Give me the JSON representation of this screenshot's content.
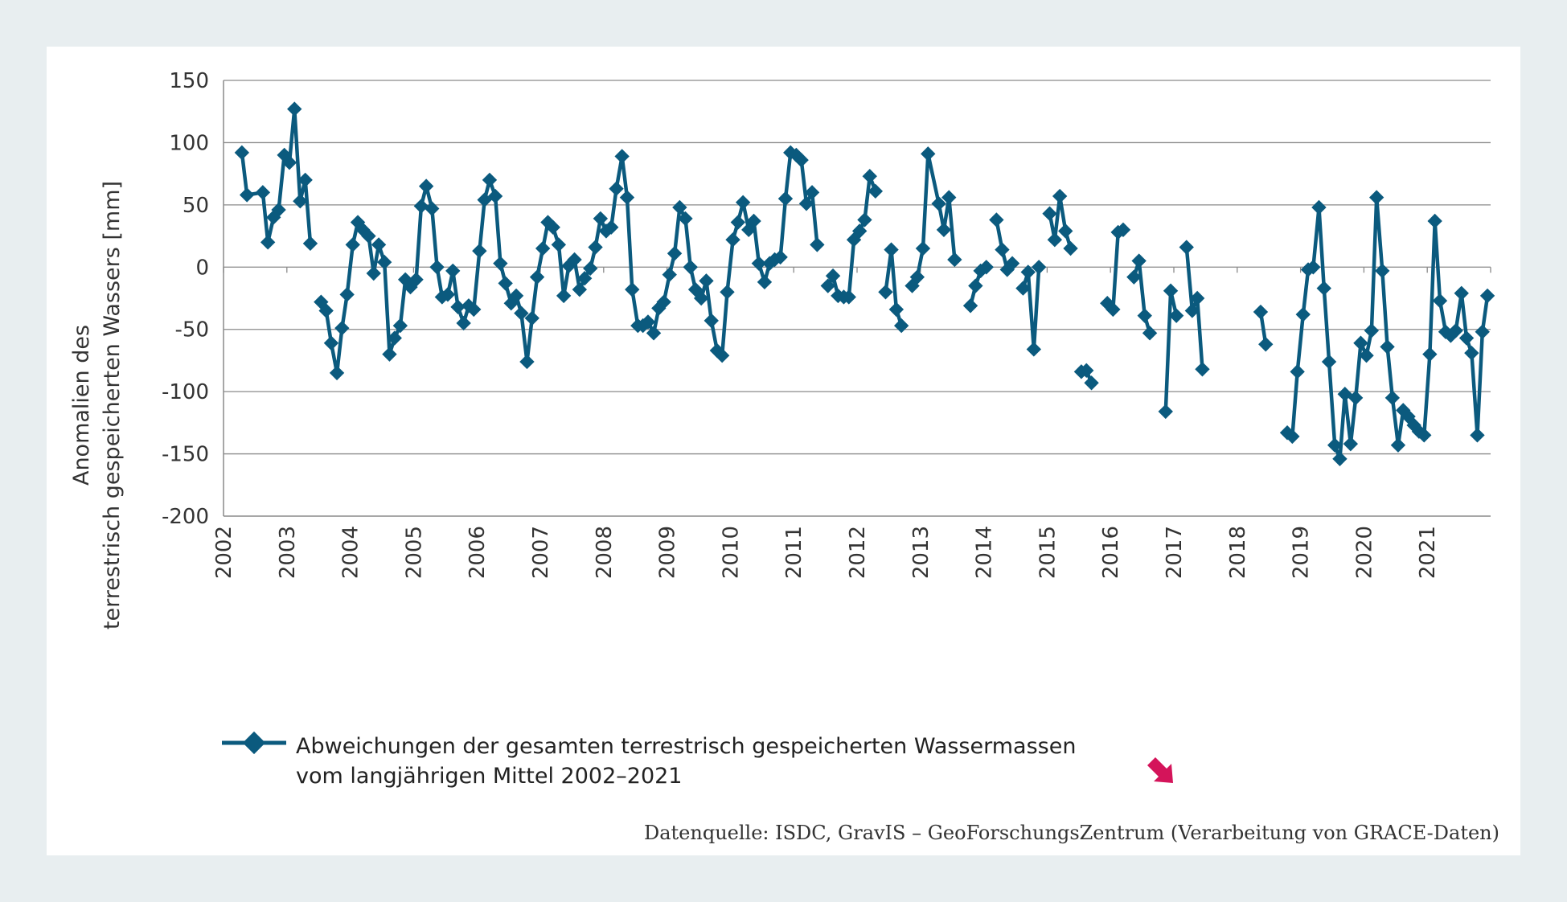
{
  "colors": {
    "line": "#0b5a7e",
    "grid": "#8a8a8a",
    "accent": "#d4145a",
    "background": "#e8eef0"
  },
  "legend": {
    "line1": "Abweichungen der gesamten terrestrisch gespeicherten Wassermassen",
    "line2": "vom langjährigen Mittel 2002–2021"
  },
  "source": "Datenquelle: ISDC, GravIS – GeoForschungsZentrum (Verarbeitung von GRACE-Daten)",
  "arrow_icon": "pink-arrow-down-right-icon",
  "chart_data": {
    "type": "line",
    "ylabel_line1": "Anomalien des",
    "ylabel_line2": "terrestrisch gespeicherten Wassers  [mm]",
    "ylim": [
      -200,
      150
    ],
    "yticks": [
      150,
      100,
      50,
      0,
      -50,
      -100,
      -150,
      -200
    ],
    "ytick_labels": [
      "150",
      "100",
      "50",
      "0",
      "-50",
      "-100",
      "-150",
      "-200"
    ],
    "xlim": [
      2002,
      2022
    ],
    "xtick_labels": [
      "2002",
      "2003",
      "2004",
      "2005",
      "2006",
      "2007",
      "2008",
      "2009",
      "2010",
      "2011",
      "2012",
      "2013",
      "2014",
      "2015",
      "2016",
      "2017",
      "2018",
      "2019",
      "2020",
      "2021"
    ],
    "grid": "horizontal",
    "series": [
      {
        "name": "Abweichungen der gesamten terrestrisch gespeicherten Wassermassen vom langjährigen Mittel 2002–2021",
        "segments": [
          [
            [
              2002.29,
              92
            ],
            [
              2002.37,
              58
            ],
            [
              2002.62,
              60
            ],
            [
              2002.7,
              20
            ],
            [
              2002.79,
              40
            ],
            [
              2002.87,
              46
            ],
            [
              2002.96,
              90
            ],
            [
              2003.04,
              84
            ],
            [
              2003.12,
              127
            ],
            [
              2003.21,
              53
            ],
            [
              2003.29,
              70
            ],
            [
              2003.37,
              19
            ]
          ],
          [
            [
              2003.54,
              -28
            ],
            [
              2003.62,
              -35
            ],
            [
              2003.7,
              -61
            ],
            [
              2003.79,
              -85
            ],
            [
              2003.87,
              -49
            ],
            [
              2003.95,
              -22
            ],
            [
              2004.04,
              18
            ],
            [
              2004.12,
              36
            ],
            [
              2004.2,
              30
            ],
            [
              2004.29,
              25
            ],
            [
              2004.37,
              -5
            ],
            [
              2004.45,
              18
            ],
            [
              2004.54,
              4
            ],
            [
              2004.62,
              -70
            ],
            [
              2004.7,
              -57
            ],
            [
              2004.79,
              -47
            ],
            [
              2004.87,
              -10
            ],
            [
              2004.95,
              -16
            ],
            [
              2005.04,
              -10
            ],
            [
              2005.12,
              49
            ],
            [
              2005.2,
              65
            ],
            [
              2005.29,
              47
            ],
            [
              2005.37,
              0
            ],
            [
              2005.45,
              -24
            ],
            [
              2005.54,
              -22
            ],
            [
              2005.62,
              -3
            ],
            [
              2005.7,
              -32
            ],
            [
              2005.79,
              -45
            ],
            [
              2005.87,
              -31
            ],
            [
              2005.95,
              -34
            ],
            [
              2006.04,
              13
            ],
            [
              2006.12,
              54
            ],
            [
              2006.2,
              70
            ],
            [
              2006.29,
              57
            ],
            [
              2006.37,
              3
            ],
            [
              2006.45,
              -13
            ],
            [
              2006.54,
              -29
            ],
            [
              2006.62,
              -23
            ],
            [
              2006.7,
              -37
            ],
            [
              2006.79,
              -76
            ],
            [
              2006.87,
              -41
            ],
            [
              2006.95,
              -8
            ],
            [
              2007.04,
              15
            ],
            [
              2007.12,
              36
            ],
            [
              2007.2,
              32
            ],
            [
              2007.29,
              18
            ],
            [
              2007.37,
              -23
            ],
            [
              2007.45,
              1
            ],
            [
              2007.54,
              6
            ],
            [
              2007.62,
              -18
            ],
            [
              2007.7,
              -9
            ],
            [
              2007.79,
              -1
            ],
            [
              2007.87,
              16
            ],
            [
              2007.95,
              39
            ],
            [
              2008.04,
              29
            ],
            [
              2008.12,
              32
            ],
            [
              2008.2,
              63
            ],
            [
              2008.29,
              89
            ],
            [
              2008.37,
              56
            ],
            [
              2008.45,
              -18
            ],
            [
              2008.54,
              -47
            ],
            [
              2008.62,
              -47
            ],
            [
              2008.7,
              -44
            ],
            [
              2008.79,
              -53
            ],
            [
              2008.87,
              -33
            ],
            [
              2008.95,
              -28
            ],
            [
              2009.04,
              -6
            ],
            [
              2009.12,
              11
            ],
            [
              2009.2,
              48
            ],
            [
              2009.29,
              39
            ],
            [
              2009.37,
              0
            ],
            [
              2009.45,
              -18
            ],
            [
              2009.54,
              -25
            ],
            [
              2009.62,
              -11
            ],
            [
              2009.7,
              -43
            ],
            [
              2009.79,
              -67
            ],
            [
              2009.87,
              -71
            ],
            [
              2009.95,
              -20
            ],
            [
              2010.04,
              22
            ],
            [
              2010.12,
              36
            ],
            [
              2010.2,
              52
            ],
            [
              2010.29,
              30
            ],
            [
              2010.37,
              37
            ],
            [
              2010.45,
              3
            ],
            [
              2010.54,
              -12
            ],
            [
              2010.62,
              3
            ],
            [
              2010.7,
              6
            ],
            [
              2010.79,
              8
            ],
            [
              2010.87,
              55
            ],
            [
              2010.95,
              92
            ],
            [
              2011.04,
              90
            ],
            [
              2011.12,
              86
            ],
            [
              2011.2,
              51
            ],
            [
              2011.29,
              60
            ],
            [
              2011.37,
              18
            ]
          ],
          [
            [
              2011.54,
              -15
            ],
            [
              2011.62,
              -7
            ],
            [
              2011.7,
              -23
            ],
            [
              2011.79,
              -24
            ],
            [
              2011.87,
              -24
            ],
            [
              2011.95,
              22
            ],
            [
              2012.04,
              29
            ],
            [
              2012.12,
              38
            ],
            [
              2012.2,
              73
            ],
            [
              2012.29,
              61
            ]
          ],
          [
            [
              2012.45,
              -20
            ],
            [
              2012.54,
              14
            ],
            [
              2012.62,
              -34
            ],
            [
              2012.7,
              -47
            ]
          ],
          [
            [
              2012.87,
              -15
            ],
            [
              2012.95,
              -8
            ],
            [
              2013.04,
              15
            ],
            [
              2013.12,
              91
            ],
            [
              2013.29,
              51
            ],
            [
              2013.37,
              30
            ],
            [
              2013.45,
              56
            ],
            [
              2013.54,
              6
            ]
          ],
          [
            [
              2013.79,
              -31
            ],
            [
              2013.87,
              -15
            ],
            [
              2013.95,
              -3
            ],
            [
              2014.04,
              0
            ]
          ],
          [
            [
              2014.2,
              38
            ],
            [
              2014.29,
              14
            ],
            [
              2014.37,
              -2
            ],
            [
              2014.45,
              3
            ]
          ],
          [
            [
              2014.62,
              -17
            ],
            [
              2014.7,
              -4
            ],
            [
              2014.79,
              -66
            ],
            [
              2014.87,
              0
            ]
          ],
          [
            [
              2015.04,
              43
            ],
            [
              2015.12,
              22
            ],
            [
              2015.2,
              57
            ],
            [
              2015.29,
              29
            ],
            [
              2015.37,
              15
            ]
          ],
          [
            [
              2015.54,
              -84
            ],
            [
              2015.62,
              -83
            ],
            [
              2015.7,
              -93
            ]
          ],
          [
            [
              2015.95,
              -29
            ],
            [
              2016.04,
              -34
            ],
            [
              2016.12,
              28
            ],
            [
              2016.2,
              30
            ]
          ],
          [
            [
              2016.37,
              -8
            ],
            [
              2016.45,
              5
            ],
            [
              2016.54,
              -39
            ],
            [
              2016.62,
              -53
            ]
          ],
          [
            [
              2016.87,
              -116
            ],
            [
              2016.95,
              -19
            ],
            [
              2017.04,
              -39
            ]
          ],
          [
            [
              2017.2,
              16
            ],
            [
              2017.29,
              -35
            ],
            [
              2017.37,
              -25
            ],
            [
              2017.45,
              -82
            ]
          ],
          [
            [
              2018.37,
              -36
            ],
            [
              2018.45,
              -62
            ]
          ],
          [
            [
              2018.79,
              -133
            ],
            [
              2018.87,
              -136
            ],
            [
              2018.95,
              -84
            ],
            [
              2019.04,
              -38
            ],
            [
              2019.12,
              -2
            ],
            [
              2019.2,
              0
            ],
            [
              2019.29,
              48
            ],
            [
              2019.37,
              -17
            ],
            [
              2019.45,
              -76
            ],
            [
              2019.54,
              -143
            ],
            [
              2019.62,
              -154
            ],
            [
              2019.7,
              -102
            ],
            [
              2019.79,
              -142
            ],
            [
              2019.87,
              -105
            ],
            [
              2019.95,
              -61
            ],
            [
              2020.04,
              -71
            ],
            [
              2020.12,
              -51
            ],
            [
              2020.2,
              56
            ],
            [
              2020.29,
              -3
            ],
            [
              2020.37,
              -64
            ],
            [
              2020.45,
              -105
            ],
            [
              2020.54,
              -143
            ],
            [
              2020.62,
              -115
            ],
            [
              2020.7,
              -120
            ],
            [
              2020.79,
              -127
            ],
            [
              2020.87,
              -132
            ],
            [
              2020.95,
              -135
            ],
            [
              2021.04,
              -70
            ],
            [
              2021.12,
              37
            ],
            [
              2021.2,
              -27
            ],
            [
              2021.29,
              -52
            ],
            [
              2021.37,
              -55
            ],
            [
              2021.45,
              -51
            ],
            [
              2021.54,
              -21
            ],
            [
              2021.62,
              -57
            ],
            [
              2021.7,
              -69
            ],
            [
              2021.79,
              -135
            ],
            [
              2021.87,
              -52
            ],
            [
              2021.95,
              -23
            ]
          ]
        ]
      }
    ]
  }
}
